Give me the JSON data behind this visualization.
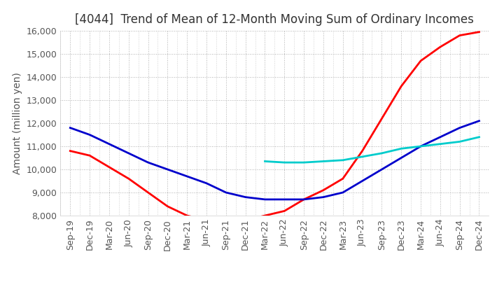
{
  "title": "[4044]  Trend of Mean of 12-Month Moving Sum of Ordinary Incomes",
  "ylabel": "Amount (million yen)",
  "ylim": [
    8000,
    16000
  ],
  "yticks": [
    8000,
    9000,
    10000,
    11000,
    12000,
    13000,
    14000,
    15000,
    16000
  ],
  "line_colors": {
    "3 Years": "#ff0000",
    "5 Years": "#0000cc",
    "7 Years": "#00cccc",
    "10 Years": "#007700"
  },
  "line_widths": {
    "3 Years": 2.0,
    "5 Years": 2.0,
    "7 Years": 2.0,
    "10 Years": 2.0
  },
  "x_labels": [
    "Sep-19",
    "Dec-19",
    "Mar-20",
    "Jun-20",
    "Sep-20",
    "Dec-20",
    "Mar-21",
    "Jun-21",
    "Sep-21",
    "Dec-21",
    "Mar-22",
    "Jun-22",
    "Sep-22",
    "Dec-22",
    "Mar-23",
    "Jun-23",
    "Sep-23",
    "Dec-23",
    "Mar-24",
    "Jun-24",
    "Sep-24",
    "Dec-24"
  ],
  "series": {
    "3 Years": [
      10800,
      10600,
      10100,
      9600,
      9000,
      8400,
      8000,
      7800,
      7700,
      7800,
      8000,
      8200,
      8700,
      9100,
      9600,
      10800,
      12200,
      13600,
      14700,
      15300,
      15800,
      15950
    ],
    "5 Years": [
      11800,
      11500,
      11100,
      10700,
      10300,
      10000,
      9700,
      9400,
      9000,
      8800,
      8700,
      8700,
      8700,
      8800,
      9000,
      9500,
      10000,
      10500,
      11000,
      11400,
      11800,
      12100
    ],
    "7 Years": [
      null,
      null,
      null,
      null,
      null,
      null,
      null,
      null,
      null,
      null,
      10350,
      10300,
      10300,
      10350,
      10400,
      10550,
      10700,
      10900,
      11000,
      11100,
      11200,
      11400
    ],
    "10 Years": [
      null,
      null,
      null,
      null,
      null,
      null,
      null,
      null,
      null,
      null,
      null,
      null,
      null,
      null,
      null,
      null,
      null,
      null,
      null,
      null,
      null,
      null
    ]
  },
  "background_color": "#ffffff",
  "grid_color": "#b0b0b0",
  "title_fontsize": 12,
  "axis_fontsize": 10,
  "tick_fontsize": 9
}
